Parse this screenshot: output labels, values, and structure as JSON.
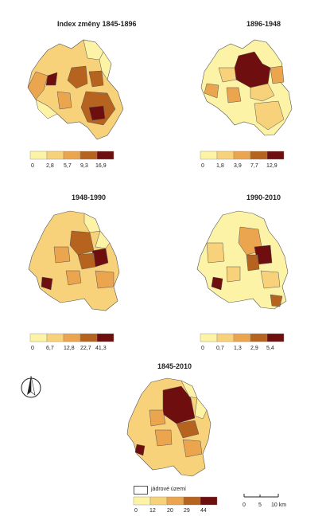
{
  "colors": {
    "classes": [
      "#fdf3a6",
      "#f8d27a",
      "#eba54e",
      "#b5631f",
      "#6e0e0e"
    ],
    "boundary": "#555555"
  },
  "maps": [
    {
      "title": "Index změny 1845-1896",
      "breaks": [
        "0",
        "2,8",
        "5,7",
        "9,3",
        "16,9"
      ]
    },
    {
      "title": "1896-1948",
      "breaks": [
        "0",
        "1,8",
        "3,9",
        "7,7",
        "12,9"
      ]
    },
    {
      "title": "1948-1990",
      "breaks": [
        "0",
        "6,7",
        "12,8",
        "22,7",
        "41,3"
      ]
    },
    {
      "title": "1990-2010",
      "breaks": [
        "0",
        "0,7",
        "1,3",
        "2,9",
        "5,4"
      ]
    },
    {
      "title": "1845-2010",
      "breaks": [
        "0",
        "12",
        "20",
        "29",
        "44"
      ]
    }
  ],
  "core_legend": "jádrové území",
  "north_arrow": "north-arrow-icon",
  "scale_bar": {
    "ticks": [
      "0",
      "5",
      "10 km"
    ]
  }
}
